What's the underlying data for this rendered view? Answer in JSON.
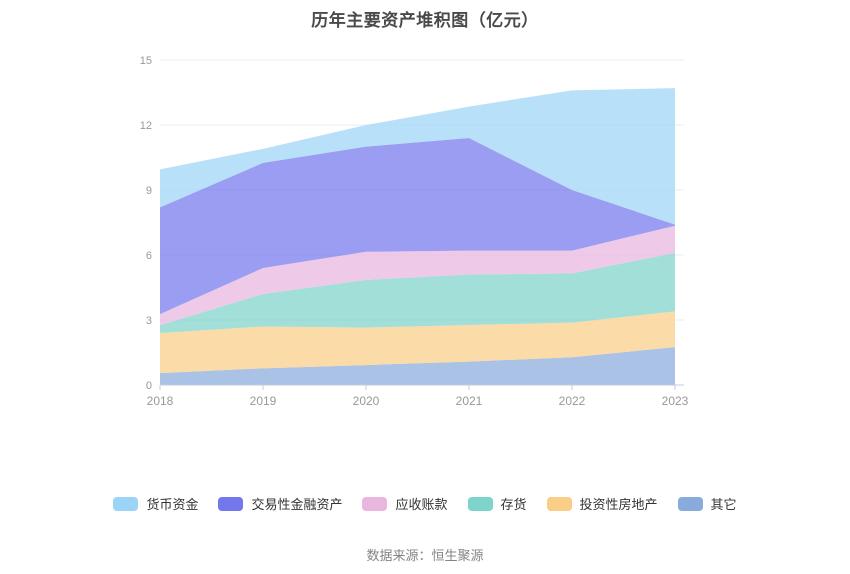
{
  "page": {
    "title": "历年主要资产堆积图（亿元）",
    "source_note": "数据来源：恒生聚源"
  },
  "theme": {
    "background": "#ffffff",
    "grid_color": "#e9edf4",
    "axis_color": "#c3cbdc",
    "axis_text_color": "#999999",
    "title_color": "#4a4a4a",
    "legend_text_color": "#333333",
    "source_text_color": "#848484",
    "area_fill_opacity": 0.72
  },
  "chart_data": {
    "type": "area",
    "stacked": true,
    "title": "历年主要资产堆积图（亿元）",
    "xlabel": "",
    "ylabel": "",
    "x": [
      "2018",
      "2019",
      "2020",
      "2021",
      "2022",
      "2023"
    ],
    "ylim": [
      0,
      15
    ],
    "yticks": [
      0,
      3,
      6,
      9,
      12,
      15
    ],
    "grid": true,
    "legend_position": "bottom",
    "stack_order": "reverse-of-legend",
    "series": [
      {
        "name": "货币资金",
        "color": "#9cd4f7",
        "values": [
          1.75,
          0.65,
          1.0,
          1.45,
          4.6,
          6.3
        ]
      },
      {
        "name": "交易性金融资产",
        "color": "#7377ec",
        "values": [
          4.93,
          4.85,
          4.85,
          5.2,
          2.8,
          0.05
        ]
      },
      {
        "name": "应收账款",
        "color": "#e9b6df",
        "values": [
          0.51,
          1.2,
          1.3,
          1.1,
          1.05,
          1.25
        ]
      },
      {
        "name": "存货",
        "color": "#7ed3cb",
        "values": [
          0.36,
          1.5,
          2.2,
          2.33,
          2.27,
          2.7
        ]
      },
      {
        "name": "投资性房地产",
        "color": "#face87",
        "values": [
          1.85,
          1.93,
          1.73,
          1.69,
          1.6,
          1.65
        ]
      },
      {
        "name": "其它",
        "color": "#88abdb",
        "values": [
          0.55,
          0.77,
          0.92,
          1.08,
          1.28,
          1.75
        ]
      }
    ],
    "totals": [
      9.95,
      10.9,
      12.0,
      12.85,
      13.6,
      13.7
    ]
  }
}
